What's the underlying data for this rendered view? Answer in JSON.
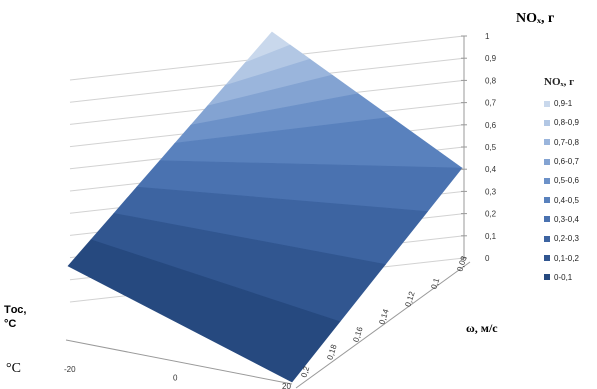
{
  "chart_data": {
    "type": "surface",
    "title": "",
    "zlabel": "NOₓ, г",
    "xlabel": "ω, м/с",
    "ylabel": "Tос, °C",
    "ylabel_unit_left": "°C",
    "zlim": [
      0,
      1
    ],
    "z_ticks": [
      "0",
      "0,1",
      "0,2",
      "0,3",
      "0,4",
      "0,5",
      "0,6",
      "0,7",
      "0,8",
      "0,9",
      "1"
    ],
    "omega_ticks": [
      "0,08",
      "0,1",
      "0,12",
      "0,14",
      "0,16",
      "0,18",
      "0,2"
    ],
    "temp_ticks": [
      "-20",
      "0",
      "20"
    ],
    "surface_corners": [
      {
        "omega": 0.08,
        "temp": 20,
        "value": 1.0
      },
      {
        "omega": 0.08,
        "temp": -20,
        "value": 0.4
      },
      {
        "omega": 0.2,
        "temp": -20,
        "value": 0.0
      },
      {
        "omega": 0.2,
        "temp": 20,
        "value": 0.0
      }
    ],
    "legend": {
      "title": "NOₓ, г",
      "placement": "right",
      "items": [
        {
          "label": "0,9-1",
          "color": "#c9d8ec"
        },
        {
          "label": "0,8-0,9",
          "color": "#b2c7e4"
        },
        {
          "label": "0,7-0,8",
          "color": "#9ab5dc"
        },
        {
          "label": "0,6-0,7",
          "color": "#83a3d2"
        },
        {
          "label": "0,5-0,6",
          "color": "#6c91c8"
        },
        {
          "label": "0,4-0,5",
          "color": "#5981bd"
        },
        {
          "label": "0,3-0,4",
          "color": "#4a72b0"
        },
        {
          "label": "0,2-0,3",
          "color": "#3d64a1"
        },
        {
          "label": "0,1-0,2",
          "color": "#315690"
        },
        {
          "label": "0-0,1",
          "color": "#26497f"
        }
      ]
    }
  }
}
